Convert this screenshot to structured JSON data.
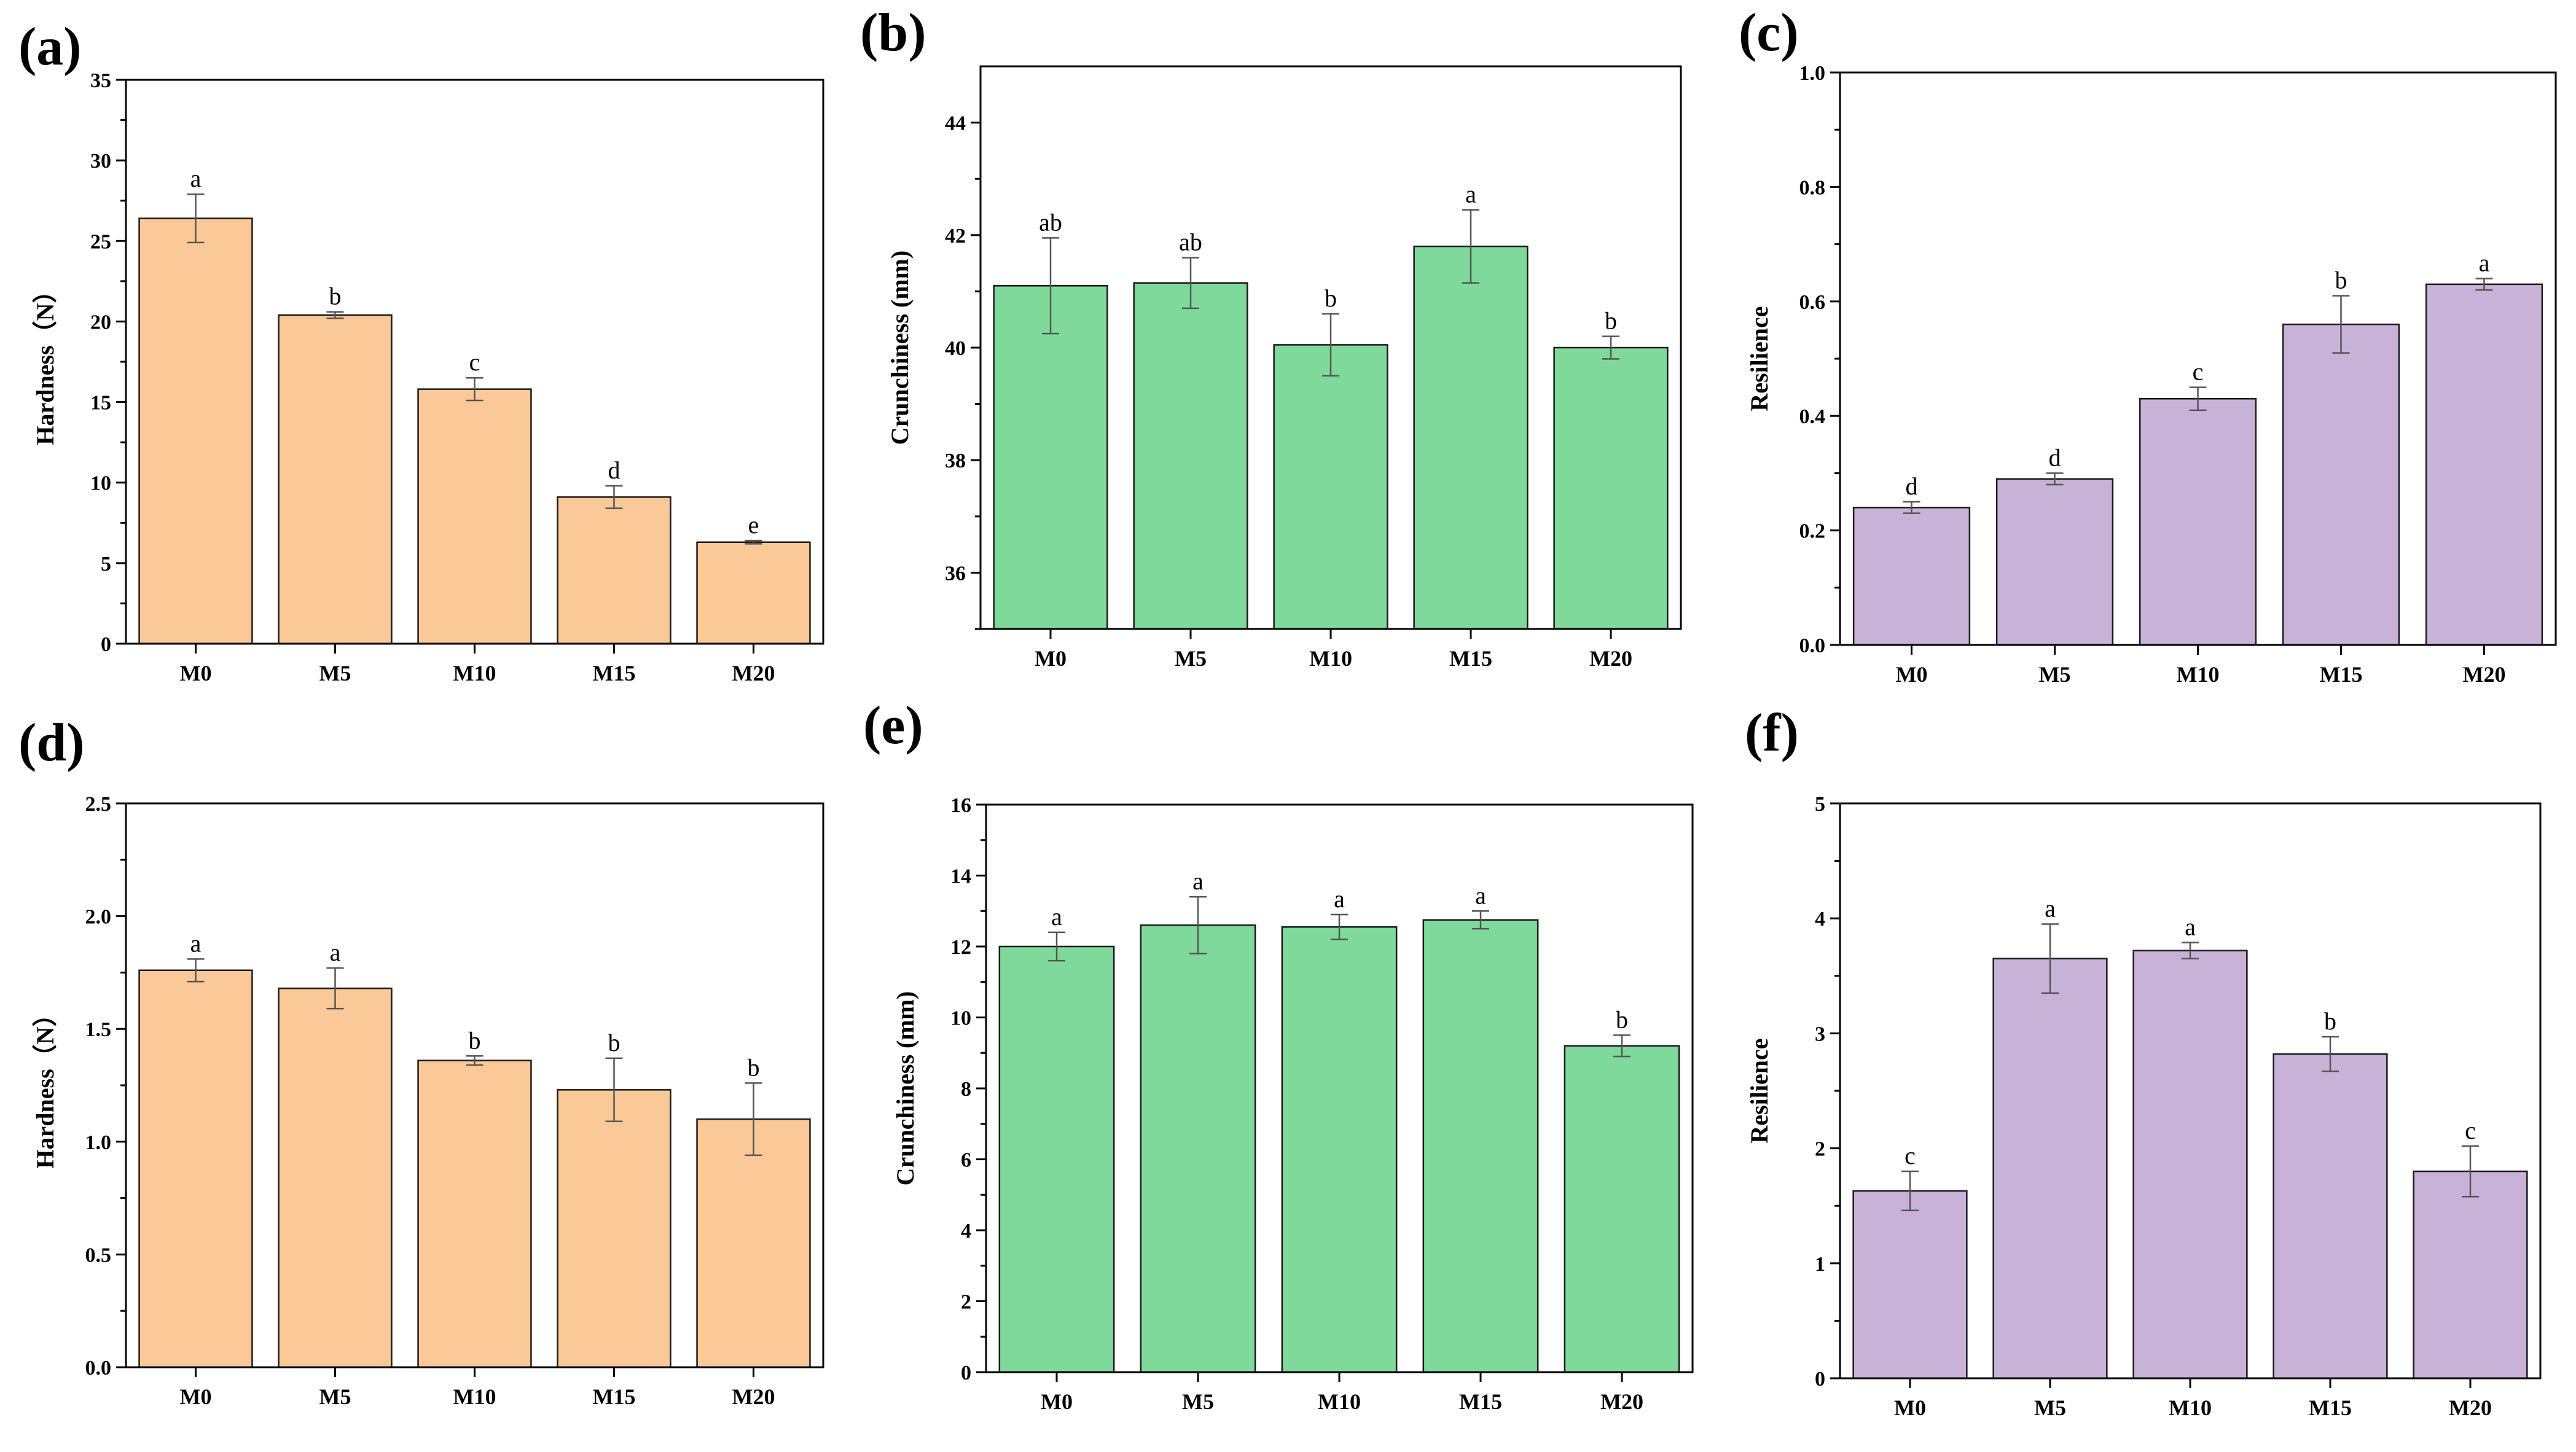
{
  "colors": {
    "hardness": "#fbc897",
    "crunchiness": "#7fd99a",
    "resilience": "#c8b2d8"
  },
  "chart_data": [
    {
      "type": "bar",
      "panel": "(a)",
      "color_key": "hardness",
      "ylabel": "Hardness（N）",
      "ylim": [
        0,
        35
      ],
      "yticks": [
        0,
        5,
        10,
        15,
        20,
        25,
        30,
        35
      ],
      "ytick_labels": [
        "0",
        "5",
        "10",
        "15",
        "20",
        "25",
        "30",
        "35"
      ],
      "categories": [
        "M0",
        "M5",
        "M10",
        "M15",
        "M20"
      ],
      "values": [
        26.4,
        20.4,
        15.8,
        9.1,
        6.3
      ],
      "errors": [
        1.5,
        0.2,
        0.7,
        0.7,
        0.1
      ],
      "labels": [
        "a",
        "b",
        "c",
        "d",
        "e"
      ]
    },
    {
      "type": "bar",
      "panel": "(b)",
      "color_key": "crunchiness",
      "ylabel": "Crunchiness (mm)",
      "ylim": [
        35,
        45
      ],
      "yticks": [
        36,
        38,
        40,
        42,
        44
      ],
      "ytick_labels": [
        "36",
        "38",
        "40",
        "42",
        "44"
      ],
      "categories": [
        "M0",
        "M5",
        "M10",
        "M15",
        "M20"
      ],
      "values": [
        41.1,
        41.15,
        40.05,
        41.8,
        40.0
      ],
      "errors": [
        0.85,
        0.45,
        0.55,
        0.65,
        0.2
      ],
      "labels": [
        "ab",
        "ab",
        "b",
        "a",
        "b"
      ]
    },
    {
      "type": "bar",
      "panel": "(c)",
      "color_key": "resilience",
      "ylabel": "Resilience",
      "ylim": [
        0,
        1
      ],
      "yticks": [
        0,
        0.2,
        0.4,
        0.6,
        0.8,
        1.0
      ],
      "ytick_labels": [
        "0.0",
        "0.2",
        "0.4",
        "0.6",
        "0.8",
        "1.0"
      ],
      "categories": [
        "M0",
        "M5",
        "M10",
        "M15",
        "M20"
      ],
      "values": [
        0.24,
        0.29,
        0.43,
        0.56,
        0.63
      ],
      "errors": [
        0.01,
        0.01,
        0.02,
        0.05,
        0.01
      ],
      "labels": [
        "d",
        "d",
        "c",
        "b",
        "a"
      ]
    },
    {
      "type": "bar",
      "panel": "(d)",
      "color_key": "hardness",
      "ylabel": "Hardness（N）",
      "ylim": [
        0,
        2.5
      ],
      "yticks": [
        0,
        0.5,
        1.0,
        1.5,
        2.0,
        2.5
      ],
      "ytick_labels": [
        "0.0",
        "0.5",
        "1.0",
        "1.5",
        "2.0",
        "2.5"
      ],
      "categories": [
        "M0",
        "M5",
        "M10",
        "M15",
        "M20"
      ],
      "values": [
        1.76,
        1.68,
        1.36,
        1.23,
        1.1
      ],
      "errors": [
        0.05,
        0.09,
        0.02,
        0.14,
        0.16
      ],
      "labels": [
        "a",
        "a",
        "b",
        "b",
        "b"
      ]
    },
    {
      "type": "bar",
      "panel": "(e)",
      "color_key": "crunchiness",
      "ylabel": "Crunchiness (mm)",
      "ylim": [
        0,
        16
      ],
      "yticks": [
        0,
        2,
        4,
        6,
        8,
        10,
        12,
        14,
        16
      ],
      "ytick_labels": [
        "0",
        "2",
        "4",
        "6",
        "8",
        "10",
        "12",
        "14",
        "16"
      ],
      "categories": [
        "M0",
        "M5",
        "M10",
        "M15",
        "M20"
      ],
      "values": [
        12.0,
        12.6,
        12.55,
        12.75,
        9.2
      ],
      "errors": [
        0.4,
        0.8,
        0.35,
        0.25,
        0.3
      ],
      "labels": [
        "a",
        "a",
        "a",
        "a",
        "b"
      ]
    },
    {
      "type": "bar",
      "panel": "(f)",
      "color_key": "resilience",
      "ylabel": "Resilience",
      "ylim": [
        0,
        5
      ],
      "yticks": [
        0,
        1,
        2,
        3,
        4,
        5
      ],
      "ytick_labels": [
        "0",
        "1",
        "2",
        "3",
        "4",
        "5"
      ],
      "categories": [
        "M0",
        "M5",
        "M10",
        "M15",
        "M20"
      ],
      "values": [
        1.63,
        3.65,
        3.72,
        2.82,
        1.8
      ],
      "errors": [
        0.17,
        0.3,
        0.07,
        0.15,
        0.22
      ],
      "labels": [
        "c",
        "a",
        "a",
        "b",
        "c"
      ]
    }
  ]
}
